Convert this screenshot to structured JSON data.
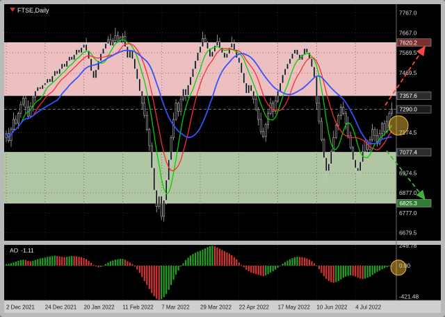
{
  "header": {
    "symbol_label": "FTSE,Daily"
  },
  "ao_panel": {
    "label": "AO",
    "value": "-1.11"
  },
  "chart_data": {
    "type": "candlestick",
    "title": "FTSE,Daily",
    "x_tick_labels": [
      "2 Dec 2021",
      "24 Dec 2021",
      "20 Jan 2022",
      "11 Feb 2022",
      "7 Mar 2022",
      "29 Mar 2022",
      "22 Apr 2022",
      "17 May 2022",
      "10 Jun 2022",
      "4 Jul 2022"
    ],
    "x_tick_step": 16,
    "price_axis": {
      "min": 6640,
      "max": 7810,
      "ticks": [
        7767.0,
        7667.0,
        7569.5,
        7469.5,
        7174.5,
        6974.5,
        6877.0,
        6777.0,
        6679.5
      ]
    },
    "current_price": 7290.0,
    "level_labels": [
      {
        "name": "target-high",
        "value": 7620.2,
        "color": "#7b2f2f"
      },
      {
        "name": "zone-top-boundary",
        "value": 7357.6,
        "color": "#2d2d2d"
      },
      {
        "name": "current-price",
        "value": 7290.0,
        "color": "#1c1c1c"
      },
      {
        "name": "zone-low-boundary",
        "value": 7077.4,
        "color": "#2d2d2d"
      },
      {
        "name": "target-low",
        "value": 6825.3,
        "color": "#2e7d32"
      }
    ],
    "zones": [
      {
        "name": "resistance-zone",
        "top": 7620.2,
        "bottom": 7357.6,
        "color": "#edbfc1"
      },
      {
        "name": "support-zone",
        "top": 7077.4,
        "bottom": 6825.3,
        "color": "#b1c7a3"
      }
    ],
    "candles": {
      "first_open": 7150,
      "closes": [
        7170,
        7135,
        7190,
        7240,
        7220,
        7270,
        7315,
        7345,
        7300,
        7255,
        7305,
        7350,
        7380,
        7400,
        7390,
        7410,
        7420,
        7440,
        7425,
        7455,
        7480,
        7465,
        7490,
        7515,
        7500,
        7530,
        7550,
        7535,
        7560,
        7585,
        7570,
        7595,
        7610,
        7580,
        7540,
        7480,
        7445,
        7485,
        7530,
        7565,
        7590,
        7615,
        7635,
        7605,
        7630,
        7655,
        7625,
        7645,
        7650,
        7600,
        7545,
        7580,
        7540,
        7490,
        7440,
        7380,
        7320,
        7260,
        7190,
        7110,
        7000,
        6890,
        6810,
        6860,
        6760,
        6840,
        6940,
        7040,
        7150,
        7240,
        7320,
        7280,
        7340,
        7390,
        7360,
        7410,
        7450,
        7490,
        7530,
        7570,
        7600,
        7640,
        7620,
        7590,
        7550,
        7575,
        7605,
        7625,
        7595,
        7570,
        7545,
        7565,
        7595,
        7615,
        7585,
        7545,
        7520,
        7470,
        7420,
        7370,
        7410,
        7380,
        7340,
        7290,
        7240,
        7180,
        7155,
        7215,
        7270,
        7320,
        7280,
        7330,
        7380,
        7420,
        7460,
        7490,
        7515,
        7540,
        7565,
        7585,
        7560,
        7535,
        7560,
        7590,
        7570,
        7540,
        7500,
        7450,
        7320,
        7230,
        7140,
        7050,
        6985,
        7020,
        7080,
        7150,
        7210,
        7260,
        7300,
        7270,
        7220,
        7160,
        7100,
        7040,
        7000,
        6985,
        7030,
        7080,
        7130,
        7090,
        7140,
        7190,
        7160,
        7120,
        7170,
        7220,
        7180,
        7230,
        7270,
        7290
      ],
      "extremes": {
        "45": {
          "high": 7694
        },
        "64": {
          "low": 6742
        },
        "132": {
          "low": 6938
        },
        "145": {
          "low": 6950
        }
      }
    },
    "moving_averages": [
      {
        "name": "fast-ma",
        "period": 7,
        "color": "#00d200"
      },
      {
        "name": "medium-ma",
        "period": 12,
        "color": "#ff2a2a"
      },
      {
        "name": "slow-ma",
        "period": 22,
        "color": "#3353ff"
      }
    ],
    "ao": {
      "up_color": "#21a121",
      "down_color": "#d43434",
      "range": [
        -421.48,
        249.78
      ],
      "axis_ticks": [
        249.78,
        0,
        -421.48
      ],
      "values": [
        20,
        25,
        30,
        40,
        50,
        60,
        70,
        75,
        70,
        60,
        55,
        60,
        70,
        80,
        90,
        95,
        100,
        110,
        115,
        120,
        125,
        120,
        115,
        110,
        105,
        110,
        115,
        120,
        118,
        115,
        110,
        105,
        95,
        80,
        60,
        35,
        10,
        -10,
        -20,
        -15,
        0,
        20,
        40,
        55,
        65,
        75,
        80,
        85,
        85,
        75,
        55,
        40,
        20,
        -10,
        -50,
        -90,
        -140,
        -190,
        -240,
        -290,
        -340,
        -380,
        -410,
        -421.48,
        -415,
        -390,
        -350,
        -300,
        -240,
        -175,
        -110,
        -60,
        -10,
        30,
        70,
        100,
        125,
        145,
        160,
        175,
        185,
        200,
        215,
        230,
        242,
        249.78,
        240,
        225,
        210,
        195,
        180,
        165,
        150,
        130,
        105,
        80,
        40,
        10,
        -20,
        -50,
        -70,
        -85,
        -95,
        -105,
        -115,
        -125,
        -130,
        -120,
        -105,
        -85,
        -70,
        -50,
        -25,
        0,
        25,
        45,
        65,
        80,
        95,
        105,
        110,
        108,
        105,
        100,
        90,
        75,
        55,
        30,
        -5,
        -45,
        -90,
        -130,
        -165,
        -190,
        -205,
        -210,
        -205,
        -190,
        -170,
        -150,
        -135,
        -125,
        -120,
        -125,
        -135,
        -150,
        -160,
        -165,
        -160,
        -150,
        -135,
        -115,
        -95,
        -75,
        -60,
        -45,
        -30,
        -18,
        -8,
        -1.11
      ]
    },
    "annotations": {
      "arrow_up": {
        "color": "#ff4444",
        "from_price": 7310,
        "to_price": 7600
      },
      "arrow_down": {
        "color": "#3fae3f",
        "from_price": 7085,
        "to_price": 6845
      },
      "price_highlight": {
        "price": 7210
      },
      "ao_highlight": {
        "value": -25
      },
      "highlight_color": "#f0b93c"
    }
  }
}
